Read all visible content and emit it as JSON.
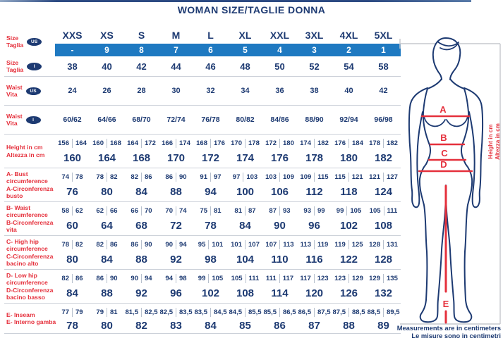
{
  "title": "WOMAN SIZE/TAGLIE DONNA",
  "colors": {
    "navy": "#1d3a72",
    "red": "#e5303c",
    "band_blue": "#1e79c1",
    "separator": "#ccd1d9"
  },
  "table": {
    "size_us": {
      "label_lines": [
        "Size",
        "Taglia"
      ],
      "badge": "US",
      "sizes": [
        "XXS",
        "XS",
        "S",
        "M",
        "L",
        "XL",
        "XXL",
        "3XL",
        "4XL",
        "5XL"
      ],
      "band_values": [
        "-",
        "9",
        "8",
        "7",
        "6",
        "5",
        "4",
        "3",
        "2",
        "1"
      ]
    },
    "simple_rows": [
      {
        "id": "size-i",
        "label_lines": [
          "Size",
          "Taglia"
        ],
        "badge": "I",
        "values": [
          "38",
          "40",
          "42",
          "44",
          "46",
          "48",
          "50",
          "52",
          "54",
          "58"
        ]
      },
      {
        "id": "waist-us",
        "label_lines": [
          "Waist",
          "Vita"
        ],
        "badge": "US",
        "values": [
          "24",
          "26",
          "28",
          "30",
          "32",
          "34",
          "36",
          "38",
          "40",
          "42"
        ]
      },
      {
        "id": "waist-i",
        "label_lines": [
          "Waist",
          "Vita"
        ],
        "badge": "I",
        "values": [
          "60/62",
          "64/66",
          "68/70",
          "72/74",
          "76/78",
          "80/82",
          "84/86",
          "88/90",
          "92/94",
          "96/98"
        ]
      }
    ],
    "measure_rows": [
      {
        "id": "height",
        "label_lines": [
          "Height in cm",
          "Altezza in cm"
        ],
        "pairs": [
          [
            "156",
            "164"
          ],
          [
            "160",
            "168"
          ],
          [
            "164",
            "172"
          ],
          [
            "166",
            "174"
          ],
          [
            "168",
            "176"
          ],
          [
            "170",
            "178"
          ],
          [
            "172",
            "180"
          ],
          [
            "174",
            "182"
          ],
          [
            "176",
            "184"
          ],
          [
            "178",
            "182"
          ]
        ],
        "values": [
          "160",
          "164",
          "168",
          "170",
          "172",
          "174",
          "176",
          "178",
          "180",
          "182"
        ]
      },
      {
        "id": "bust",
        "label_lines": [
          "A- Bust",
          "circumference",
          "A-Circonferenza",
          "busto"
        ],
        "pairs": [
          [
            "74",
            "78"
          ],
          [
            "78",
            "82"
          ],
          [
            "82",
            "86"
          ],
          [
            "86",
            "90"
          ],
          [
            "91",
            "97"
          ],
          [
            "97",
            "103"
          ],
          [
            "103",
            "109"
          ],
          [
            "109",
            "115"
          ],
          [
            "115",
            "121"
          ],
          [
            "121",
            "127"
          ]
        ],
        "values": [
          "76",
          "80",
          "84",
          "88",
          "94",
          "100",
          "106",
          "112",
          "118",
          "124"
        ]
      },
      {
        "id": "waist-b",
        "label_lines": [
          "B- Waist",
          "circumference",
          "B-Circonferenza",
          "vita"
        ],
        "pairs": [
          [
            "58",
            "62"
          ],
          [
            "62",
            "66"
          ],
          [
            "66",
            "70"
          ],
          [
            "70",
            "74"
          ],
          [
            "75",
            "81"
          ],
          [
            "81",
            "87"
          ],
          [
            "87",
            "93"
          ],
          [
            "93",
            "99"
          ],
          [
            "99",
            "105"
          ],
          [
            "105",
            "111"
          ]
        ],
        "values": [
          "60",
          "64",
          "68",
          "72",
          "78",
          "84",
          "90",
          "96",
          "102",
          "108"
        ]
      },
      {
        "id": "high-hip",
        "label_lines": [
          "C- High hip",
          "circumference",
          "C-Circonferenza",
          "bacino alto"
        ],
        "pairs": [
          [
            "78",
            "82"
          ],
          [
            "82",
            "86"
          ],
          [
            "86",
            "90"
          ],
          [
            "90",
            "94"
          ],
          [
            "95",
            "101"
          ],
          [
            "101",
            "107"
          ],
          [
            "107",
            "113"
          ],
          [
            "113",
            "119"
          ],
          [
            "119",
            "125"
          ],
          [
            "128",
            "131"
          ]
        ],
        "values": [
          "80",
          "84",
          "88",
          "92",
          "98",
          "104",
          "110",
          "116",
          "122",
          "128"
        ]
      },
      {
        "id": "low-hip",
        "label_lines": [
          "D- Low hip",
          "circumference",
          "D-Circonferenza",
          "bacino basso"
        ],
        "pairs": [
          [
            "82",
            "86"
          ],
          [
            "86",
            "90"
          ],
          [
            "90",
            "94"
          ],
          [
            "94",
            "98"
          ],
          [
            "99",
            "105"
          ],
          [
            "105",
            "111"
          ],
          [
            "111",
            "117"
          ],
          [
            "117",
            "123"
          ],
          [
            "123",
            "129"
          ],
          [
            "129",
            "135"
          ]
        ],
        "values": [
          "84",
          "88",
          "92",
          "96",
          "102",
          "108",
          "114",
          "120",
          "126",
          "132"
        ]
      },
      {
        "id": "inseam",
        "label_lines": [
          "E- Inseam",
          "E- Interno gamba"
        ],
        "pairs": [
          [
            "77",
            "79"
          ],
          [
            "79",
            "81"
          ],
          [
            "81,5",
            "82,5"
          ],
          [
            "82,5",
            "83,5"
          ],
          [
            "83,5",
            "84,5"
          ],
          [
            "84,5",
            "85,5"
          ],
          [
            "85,5",
            "86,5"
          ],
          [
            "86,5",
            "87,5"
          ],
          [
            "87,5",
            "88,5"
          ],
          [
            "88,5",
            "89,5"
          ]
        ],
        "values": [
          "78",
          "80",
          "82",
          "83",
          "84",
          "85",
          "86",
          "87",
          "88",
          "89"
        ]
      }
    ]
  },
  "figure": {
    "labels": {
      "a": "A",
      "b": "B",
      "c": "C",
      "d": "D",
      "e": "E"
    },
    "height_label_en": "Height in cm",
    "height_label_it": "Altezza in cm"
  },
  "footnote": {
    "line1": "Measurements are in centimeters",
    "line2": "Le misure sono in centimetri"
  },
  "chart_data": {
    "type": "table",
    "title": "WOMAN SIZE/TAGLIE DONNA",
    "columns": [
      "XXS",
      "XS",
      "S",
      "M",
      "L",
      "XL",
      "XXL",
      "3XL",
      "4XL",
      "5XL"
    ],
    "rows": [
      {
        "label": "Size/Taglia (US number)",
        "values": [
          "-",
          "9",
          "8",
          "7",
          "6",
          "5",
          "4",
          "3",
          "2",
          "1"
        ]
      },
      {
        "label": "Size/Taglia (I)",
        "values": [
          38,
          40,
          42,
          44,
          46,
          48,
          50,
          52,
          54,
          58
        ]
      },
      {
        "label": "Waist/Vita (US)",
        "values": [
          24,
          26,
          28,
          30,
          32,
          34,
          36,
          38,
          40,
          42
        ]
      },
      {
        "label": "Waist/Vita (I)",
        "values": [
          "60/62",
          "64/66",
          "68/70",
          "72/74",
          "76/78",
          "80/82",
          "84/86",
          "88/90",
          "92/94",
          "96/98"
        ]
      },
      {
        "label": "Height in cm (range)",
        "values": [
          "156-164",
          "160-168",
          "164-172",
          "166-174",
          "168-176",
          "170-178",
          "172-180",
          "174-182",
          "176-184",
          "178-182"
        ]
      },
      {
        "label": "Height in cm (recommended)",
        "values": [
          160,
          164,
          168,
          170,
          172,
          174,
          176,
          178,
          180,
          182
        ]
      },
      {
        "label": "A Bust circumference (range)",
        "values": [
          "74-78",
          "78-82",
          "82-86",
          "86-90",
          "91-97",
          "97-103",
          "103-109",
          "109-115",
          "115-121",
          "121-127"
        ]
      },
      {
        "label": "A Bust circumference (recommended)",
        "values": [
          76,
          80,
          84,
          88,
          94,
          100,
          106,
          112,
          118,
          124
        ]
      },
      {
        "label": "B Waist circumference (range)",
        "values": [
          "58-62",
          "62-66",
          "66-70",
          "70-74",
          "75-81",
          "81-87",
          "87-93",
          "93-99",
          "99-105",
          "105-111"
        ]
      },
      {
        "label": "B Waist circumference (recommended)",
        "values": [
          60,
          64,
          68,
          72,
          78,
          84,
          90,
          96,
          102,
          108
        ]
      },
      {
        "label": "C High hip circumference (range)",
        "values": [
          "78-82",
          "82-86",
          "86-90",
          "90-94",
          "95-101",
          "101-107",
          "107-113",
          "113-119",
          "119-125",
          "128-131"
        ]
      },
      {
        "label": "C High hip circumference (recommended)",
        "values": [
          80,
          84,
          88,
          92,
          98,
          104,
          110,
          116,
          122,
          128
        ]
      },
      {
        "label": "D Low hip circumference (range)",
        "values": [
          "82-86",
          "86-90",
          "90-94",
          "94-98",
          "99-105",
          "105-111",
          "111-117",
          "117-123",
          "123-129",
          "129-135"
        ]
      },
      {
        "label": "D Low hip circumference (recommended)",
        "values": [
          84,
          88,
          92,
          96,
          102,
          108,
          114,
          120,
          126,
          132
        ]
      },
      {
        "label": "E Inseam (range)",
        "values": [
          "77-79",
          "79-81",
          "81,5-82,5",
          "82,5-83,5",
          "83,5-84,5",
          "84,5-85,5",
          "85,5-86,5",
          "86,5-87,5",
          "87,5-88,5",
          "88,5-89,5"
        ]
      },
      {
        "label": "E Inseam (recommended)",
        "values": [
          78,
          80,
          82,
          83,
          84,
          85,
          86,
          87,
          88,
          89
        ]
      }
    ],
    "units": "centimeters"
  }
}
